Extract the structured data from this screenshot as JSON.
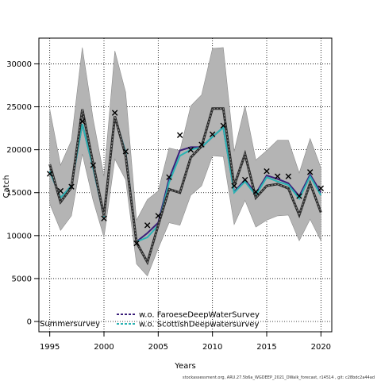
{
  "chart_data": {
    "type": "line",
    "xlabel": "Years",
    "ylabel": "Catch",
    "xlim": [
      1994.0,
      2021.0
    ],
    "ylim": [
      -1200,
      33000
    ],
    "xticks": [
      1995,
      2000,
      2005,
      2010,
      2015,
      2020
    ],
    "yticks": [
      0,
      5000,
      10000,
      15000,
      20000,
      25000,
      30000
    ],
    "grid": true,
    "legend_position": "bottom-center",
    "colors": {
      "band": "#b4b4b4",
      "band_edge": "#8c8c8c",
      "summer": "#2a2a2a",
      "faroese": "#3b1f7a",
      "scottish": "#2ab3b3",
      "observed": "#000000"
    },
    "observed": {
      "x": [
        1995,
        1996,
        1997,
        1998,
        1999,
        2000,
        2001,
        2002,
        2003,
        2004,
        2005,
        2006,
        2007,
        2008,
        2009,
        2010,
        2011,
        2012,
        2013,
        2014,
        2015,
        2016,
        2017,
        2018,
        2019,
        2020
      ],
      "y": [
        17200,
        15200,
        15700,
        23300,
        18200,
        12000,
        24300,
        19800,
        9100,
        11200,
        12300,
        16800,
        21700,
        20000,
        20600,
        21800,
        22800,
        15800,
        16500,
        15100,
        17500,
        16900,
        16900,
        14600,
        17400,
        15500
      ]
    },
    "band": {
      "x": [
        1995,
        1996,
        1997,
        1998,
        1999,
        2000,
        2001,
        2002,
        2003,
        2004,
        2005,
        2006,
        2007,
        2008,
        2009,
        2010,
        2011,
        2012,
        2013,
        2014,
        2015,
        2016,
        2017,
        2018,
        2019,
        2020
      ],
      "lower": [
        13700,
        10600,
        12300,
        19500,
        14100,
        9800,
        18900,
        16500,
        6700,
        5300,
        8500,
        11500,
        11200,
        14700,
        15800,
        19300,
        19200,
        11300,
        14100,
        11000,
        11800,
        12300,
        12400,
        9400,
        11900,
        9400
      ],
      "upper": [
        24700,
        18200,
        21100,
        31900,
        23600,
        16900,
        31500,
        26700,
        11800,
        14200,
        15200,
        20200,
        19900,
        25100,
        26400,
        31800,
        31900,
        19800,
        25100,
        18800,
        19900,
        21100,
        21100,
        17300,
        21300,
        17900
      ]
    },
    "series": [
      {
        "name": "Summersurvey",
        "x": [
          1995,
          1996,
          1997,
          1998,
          1999,
          2000,
          2001,
          2002,
          2003,
          2004,
          2005,
          2006,
          2007,
          2008,
          2009,
          2010,
          2011,
          2012,
          2013,
          2014,
          2015,
          2016,
          2017,
          2018,
          2019,
          2020
        ],
        "values": [
          18300,
          13900,
          15600,
          24700,
          18400,
          12300,
          23900,
          19300,
          9200,
          6900,
          11200,
          15400,
          15000,
          19100,
          20400,
          24800,
          24800,
          15800,
          19500,
          14400,
          15800,
          16000,
          15500,
          12400,
          16100,
          12700
        ]
      },
      {
        "name": "w.o. FaroeseDeepWaterSurvey",
        "x": [
          1995,
          1996,
          1997,
          1998,
          1999,
          2000,
          2001,
          2002,
          2003,
          2004,
          2005,
          2006,
          2007,
          2008,
          2009,
          2010,
          2011,
          2012,
          2013,
          2014,
          2015,
          2016,
          2017,
          2018,
          2019,
          2020
        ],
        "values": [
          17500,
          14400,
          15800,
          23000,
          17900,
          12200,
          23800,
          19700,
          9300,
          10300,
          11500,
          16600,
          19900,
          20300,
          20300,
          21500,
          22600,
          15100,
          16500,
          14900,
          17000,
          16600,
          16100,
          14600,
          17100,
          15000
        ]
      },
      {
        "name": "w.o. ScottishDeepwatersurvey",
        "x": [
          1995,
          1996,
          1997,
          1998,
          1999,
          2000,
          2001,
          2002,
          2003,
          2004,
          2005,
          2006,
          2007,
          2008,
          2009,
          2010,
          2011,
          2012,
          2013,
          2014,
          2015,
          2016,
          2017,
          2018,
          2019,
          2020
        ],
        "values": [
          17500,
          14400,
          15800,
          23000,
          17900,
          12200,
          23800,
          19700,
          9300,
          9800,
          11200,
          16200,
          19300,
          20000,
          20300,
          21500,
          22600,
          15000,
          16300,
          14700,
          16800,
          16300,
          15900,
          14300,
          16900,
          14700
        ]
      }
    ]
  },
  "footer": "stockassessment.org,  ARU.27.5b6a_WGDEEP_2021_DWalk_forecast,  r14514 ,  git: c28bdc2a44ad"
}
